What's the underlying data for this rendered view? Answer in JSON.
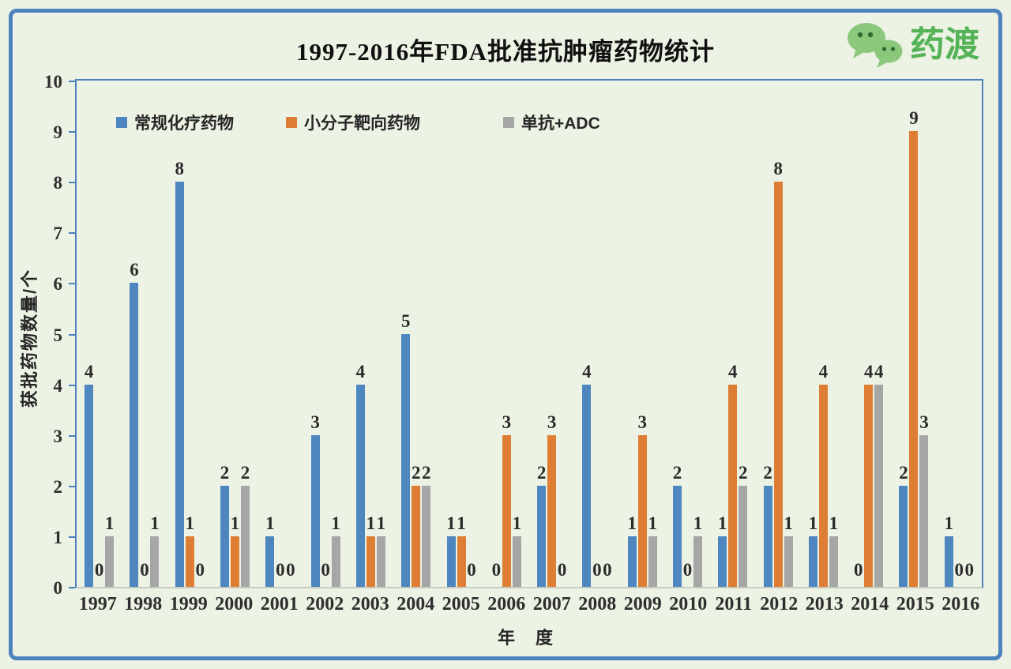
{
  "theme": {
    "background": "#ECF2E4",
    "frame": "#4C82BE",
    "axis": "#4D81BC",
    "axis_bottom": "#C9CCC3"
  },
  "header": {
    "logo_text": "药渡",
    "logo_text_color": "#55B357",
    "logo_bubble_color": "#8CC87C",
    "logo_bubble_eye_color": "#2F6B2F"
  },
  "chart_data": {
    "type": "bar",
    "title": "1997-2016年FDA批准抗肿瘤药物统计",
    "xlabel": "年 度",
    "ylabel": "获批药物数量/个",
    "ylim": [
      0,
      10
    ],
    "yticks": [
      0,
      1,
      2,
      3,
      4,
      5,
      6,
      7,
      8,
      9,
      10
    ],
    "grid": false,
    "legend_position": "top-left-inside",
    "categories": [
      "1997",
      "1998",
      "1999",
      "2000",
      "2001",
      "2002",
      "2003",
      "2004",
      "2005",
      "2006",
      "2007",
      "2008",
      "2009",
      "2010",
      "2011",
      "2012",
      "2013",
      "2014",
      "2015",
      "2016"
    ],
    "series": [
      {
        "name": "常规化疗药物",
        "color": "#4E86C0",
        "values": [
          4,
          6,
          8,
          2,
          1,
          3,
          4,
          5,
          1,
          0,
          2,
          4,
          1,
          2,
          1,
          2,
          1,
          0,
          2,
          1
        ]
      },
      {
        "name": "小分子靶向药物",
        "color": "#DE7D34",
        "values": [
          0,
          0,
          1,
          1,
          0,
          0,
          1,
          2,
          1,
          3,
          3,
          0,
          3,
          0,
          4,
          8,
          4,
          4,
          9,
          0
        ]
      },
      {
        "name": "单抗+ADC",
        "color": "#A6A6A6",
        "values": [
          1,
          1,
          0,
          2,
          0,
          1,
          1,
          2,
          0,
          1,
          0,
          0,
          1,
          1,
          2,
          1,
          1,
          4,
          3,
          0
        ]
      }
    ]
  }
}
